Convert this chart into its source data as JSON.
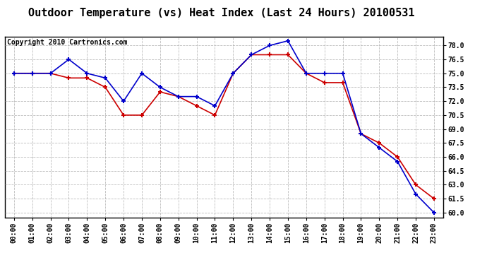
{
  "title": "Outdoor Temperature (vs) Heat Index (Last 24 Hours) 20100531",
  "copyright_text": "Copyright 2010 Cartronics.com",
  "x_labels": [
    "00:00",
    "01:00",
    "02:00",
    "03:00",
    "04:00",
    "05:00",
    "06:00",
    "07:00",
    "08:00",
    "09:00",
    "10:00",
    "11:00",
    "12:00",
    "13:00",
    "14:00",
    "15:00",
    "16:00",
    "17:00",
    "18:00",
    "19:00",
    "20:00",
    "21:00",
    "22:00",
    "23:00"
  ],
  "temp_data": [
    75.0,
    75.0,
    75.0,
    74.5,
    74.5,
    73.5,
    70.5,
    70.5,
    73.0,
    72.5,
    71.5,
    70.5,
    75.0,
    77.0,
    77.0,
    77.0,
    75.0,
    74.0,
    74.0,
    68.5,
    67.5,
    66.0,
    63.0,
    61.5
  ],
  "heat_index_data": [
    75.0,
    75.0,
    75.0,
    76.5,
    75.0,
    74.5,
    72.0,
    75.0,
    73.5,
    72.5,
    72.5,
    71.5,
    75.0,
    77.0,
    78.0,
    78.5,
    75.0,
    75.0,
    75.0,
    68.5,
    67.0,
    65.5,
    62.0,
    60.0
  ],
  "temp_color": "#cc0000",
  "heat_index_color": "#0000cc",
  "ylim_min": 59.5,
  "ylim_max": 78.9,
  "yticks": [
    60.0,
    61.5,
    63.0,
    64.5,
    66.0,
    67.5,
    69.0,
    70.5,
    72.0,
    73.5,
    75.0,
    76.5,
    78.0
  ],
  "background_color": "#ffffff",
  "grid_color": "#aaaaaa",
  "title_fontsize": 11,
  "copyright_fontsize": 7,
  "tick_fontsize": 7,
  "marker": "+"
}
